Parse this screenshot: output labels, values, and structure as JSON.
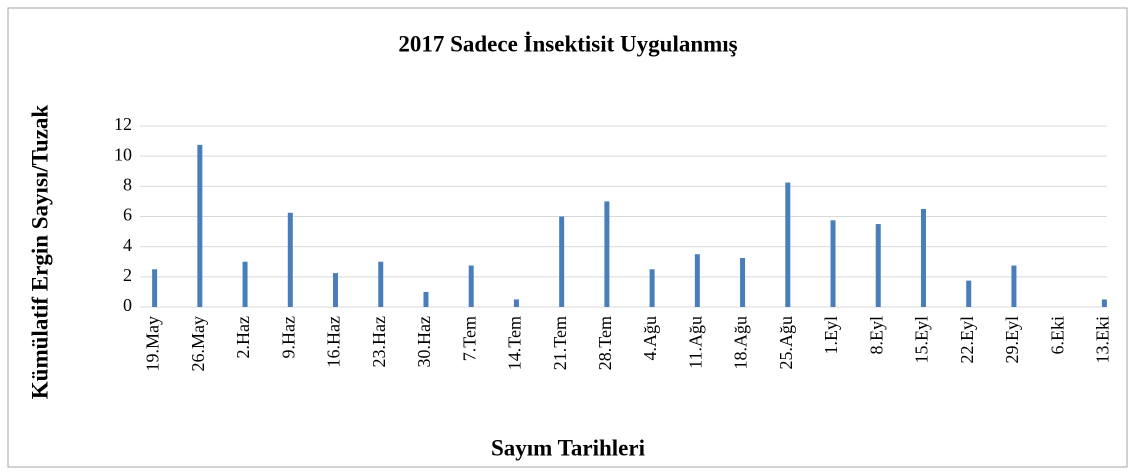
{
  "chart_data": {
    "type": "bar",
    "title": "2017 Sadece İnsektisit Uygulanmış",
    "xlabel": "Sayım Tarihleri",
    "ylabel": "Kümülatif Ergin Sayısı/Tuzak",
    "categories": [
      "19.May",
      "26.May",
      "2.Haz",
      "9.Haz",
      "16.Haz",
      "23.Haz",
      "30.Haz",
      "7.Tem",
      "14.Tem",
      "21.Tem",
      "28.Tem",
      "4.Ağu",
      "11.Ağu",
      "18.Ağu",
      "25.Ağu",
      "1.Eyl",
      "8.Eyl",
      "15.Eyl",
      "22.Eyl",
      "29.Eyl",
      "6.Eki",
      "13.Eki"
    ],
    "values": [
      2.5,
      10.75,
      3,
      6.25,
      2.25,
      3,
      1,
      2.75,
      0.5,
      6,
      7,
      2.5,
      3.5,
      3.25,
      8.25,
      5.75,
      5.5,
      6.5,
      1.75,
      2.75,
      0,
      0.5
    ],
    "color": "#4a7ebb",
    "ylim": [
      0,
      12
    ],
    "yticks": [
      0,
      2,
      4,
      6,
      8,
      10,
      12
    ],
    "grid": true
  }
}
